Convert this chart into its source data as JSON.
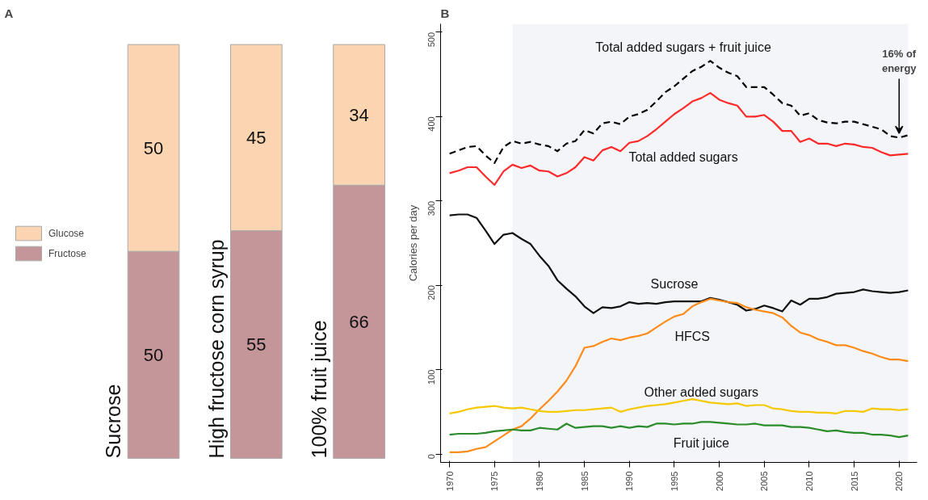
{
  "chart_data": [
    {
      "type": "bar",
      "title": "A",
      "stacked": true,
      "data_labels": true,
      "legend": "left",
      "categories": [
        "Sucrose",
        "High fructose corn syrup",
        "100% fruit juice"
      ],
      "series": [
        {
          "name": "Fructose",
          "color": "#c4969a",
          "values": [
            50,
            55,
            66
          ]
        },
        {
          "name": "Glucose",
          "color": "#fbd5b1",
          "values": [
            50,
            45,
            34
          ]
        }
      ]
    },
    {
      "type": "line",
      "title": "B",
      "ylabel": "Calories per day",
      "grid": false,
      "legend": false,
      "x": [
        1970,
        1971,
        1972,
        1973,
        1974,
        1975,
        1976,
        1977,
        1978,
        1979,
        1980,
        1981,
        1982,
        1983,
        1984,
        1985,
        1986,
        1987,
        1988,
        1989,
        1990,
        1991,
        1992,
        1993,
        1994,
        1995,
        1996,
        1997,
        1998,
        1999,
        2000,
        2001,
        2002,
        2003,
        2004,
        2005,
        2006,
        2007,
        2008,
        2009,
        2010,
        2011,
        2012,
        2013,
        2014,
        2015,
        2016,
        2017,
        2018,
        2019,
        2020,
        2021
      ],
      "xlim": [
        1969,
        2022
      ],
      "xticks": [
        1970,
        1975,
        1980,
        1985,
        1990,
        1995,
        2000,
        2005,
        2010,
        2015,
        2020
      ],
      "ylim": [
        -10,
        510
      ],
      "yticks": [
        0,
        100,
        200,
        300,
        400,
        500
      ],
      "bands": [
        {
          "axis": "x",
          "from": 1977,
          "to": 2021,
          "color": "#f4f5f8"
        }
      ],
      "annotations": [
        {
          "text": "16% of energy",
          "x": 2020,
          "y": 375
        }
      ],
      "series": [
        {
          "name": "Total added sugars + fruit juice",
          "color": "#000000",
          "line_style": "dashed",
          "values": [
            356,
            360,
            364,
            365,
            354,
            345,
            364,
            371,
            368,
            370,
            367,
            365,
            359,
            368,
            371,
            384,
            380,
            392,
            394,
            391,
            400,
            403,
            408,
            418,
            429,
            436,
            445,
            454,
            459,
            466,
            458,
            452,
            448,
            435,
            435,
            435,
            426,
            416,
            413,
            401,
            404,
            396,
            393,
            392,
            394,
            394,
            391,
            388,
            385,
            377,
            375,
            378
          ]
        },
        {
          "name": "Total added sugars",
          "color": "#ff2a2a",
          "line_style": "solid",
          "values": [
            333,
            336,
            340,
            340,
            329,
            319,
            335,
            343,
            339,
            342,
            336,
            335,
            329,
            333,
            340,
            352,
            348,
            360,
            364,
            359,
            369,
            371,
            377,
            385,
            394,
            403,
            410,
            418,
            422,
            428,
            420,
            416,
            413,
            400,
            400,
            402,
            394,
            383,
            383,
            370,
            374,
            368,
            368,
            365,
            368,
            367,
            364,
            363,
            358,
            354,
            355,
            356
          ]
        },
        {
          "name": "Sucrose",
          "color": "#111111",
          "line_style": "solid",
          "values": [
            283,
            284,
            284,
            280,
            265,
            249,
            260,
            262,
            255,
            249,
            235,
            223,
            206,
            196,
            187,
            175,
            167,
            174,
            173,
            175,
            180,
            178,
            179,
            178,
            180,
            181,
            181,
            181,
            181,
            185,
            183,
            180,
            177,
            170,
            172,
            176,
            173,
            169,
            182,
            177,
            184,
            184,
            186,
            190,
            191,
            192,
            195,
            193,
            192,
            191,
            192,
            194
          ]
        },
        {
          "name": "HFCS",
          "color": "#ff8c1a",
          "line_style": "solid",
          "values": [
            2,
            2,
            3,
            6,
            8,
            15,
            22,
            29,
            33,
            42,
            53,
            63,
            74,
            87,
            104,
            126,
            128,
            133,
            137,
            135,
            138,
            140,
            143,
            150,
            157,
            163,
            166,
            175,
            180,
            184,
            182,
            180,
            179,
            174,
            171,
            169,
            167,
            162,
            152,
            144,
            141,
            136,
            133,
            129,
            129,
            126,
            122,
            119,
            115,
            112,
            112,
            110
          ]
        },
        {
          "name": "Other added sugars",
          "color": "#f5c800",
          "line_style": "solid",
          "values": [
            48,
            50,
            53,
            55,
            56,
            57,
            55,
            54,
            55,
            53,
            51,
            50,
            50,
            51,
            52,
            52,
            53,
            54,
            55,
            50,
            53,
            55,
            57,
            58,
            59,
            61,
            63,
            65,
            63,
            61,
            60,
            59,
            60,
            57,
            58,
            58,
            54,
            53,
            51,
            50,
            50,
            49,
            49,
            48,
            51,
            51,
            50,
            54,
            53,
            53,
            52,
            53
          ]
        },
        {
          "name": "Fruit juice",
          "color": "#2a8c2a",
          "line_style": "solid",
          "values": [
            23,
            24,
            24,
            24,
            25,
            27,
            28,
            29,
            28,
            28,
            31,
            30,
            29,
            36,
            31,
            32,
            33,
            33,
            31,
            33,
            31,
            33,
            32,
            36,
            36,
            35,
            36,
            36,
            38,
            38,
            37,
            36,
            35,
            35,
            36,
            34,
            34,
            34,
            32,
            32,
            31,
            29,
            27,
            28,
            26,
            25,
            25,
            23,
            23,
            22,
            20,
            22
          ]
        }
      ]
    }
  ]
}
